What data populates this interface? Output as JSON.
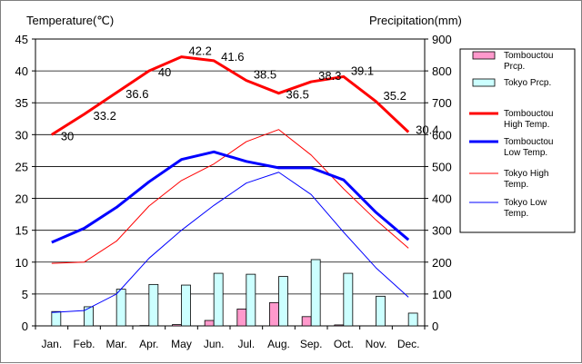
{
  "chart_data": {
    "type": "bar+line",
    "categories": [
      "Jan.",
      "Feb.",
      "Mar.",
      "Apr.",
      "May",
      "Jun.",
      "Jul.",
      "Aug.",
      "Sep.",
      "Oct.",
      "Nov.",
      "Dec."
    ],
    "y_left": {
      "label": "Temperature(℃)",
      "range": [
        0,
        45
      ],
      "ticks": [
        0,
        5,
        10,
        15,
        20,
        25,
        30,
        35,
        40,
        45
      ]
    },
    "y_right": {
      "label": "Precipitation(mm)",
      "range": [
        0,
        900
      ],
      "ticks": [
        0,
        100,
        200,
        300,
        400,
        500,
        600,
        700,
        800,
        900
      ]
    },
    "bars": [
      {
        "name": "Tombouctou Prcp.",
        "color": "#ff99cc",
        "axis": "right",
        "values": [
          0,
          0,
          0,
          1,
          4,
          17,
          53,
          73,
          29,
          3,
          0,
          0
        ]
      },
      {
        "name": "Tokyo Prcp.",
        "color": "#ccffff",
        "axis": "right",
        "values": [
          45,
          60,
          115,
          130,
          128,
          165,
          162,
          155,
          208,
          165,
          93,
          40
        ]
      }
    ],
    "lines": [
      {
        "name": "Tombouctou High Temp.",
        "color": "#ff0000",
        "width": 3,
        "axis": "left",
        "values": [
          30,
          33.2,
          36.6,
          40,
          42.2,
          41.6,
          38.5,
          36.5,
          38.3,
          39.1,
          35.2,
          30.4
        ],
        "labels": [
          "30",
          "33.2",
          "36.6",
          "40",
          "42.2",
          "41.6",
          "38.5",
          "36.5",
          "38.3",
          "39.1",
          "35.2",
          "30.4"
        ]
      },
      {
        "name": "Tombouctou Low Temp.",
        "color": "#0000ff",
        "width": 3,
        "axis": "left",
        "values": [
          13.1,
          15.3,
          18.6,
          22.6,
          26.1,
          27.3,
          25.8,
          24.8,
          24.8,
          22.9,
          17.8,
          13.5
        ]
      },
      {
        "name": "Tokyo High Temp.",
        "color": "#ff0000",
        "width": 1,
        "axis": "left",
        "values": [
          9.8,
          10.0,
          13.3,
          18.8,
          22.8,
          25.4,
          28.9,
          30.8,
          26.8,
          21.5,
          16.6,
          12.2
        ]
      },
      {
        "name": "Tokyo Low Temp.",
        "color": "#0000ff",
        "width": 1,
        "axis": "left",
        "values": [
          2.1,
          2.4,
          5.0,
          10.6,
          15.0,
          18.9,
          22.4,
          24.1,
          20.6,
          14.7,
          9.1,
          4.5
        ]
      }
    ],
    "legend_position": "right"
  },
  "legend": [
    {
      "line1": "Tombouctou",
      "line2": "Prcp."
    },
    {
      "line1": "Tokyo Prcp.",
      "line2": ""
    },
    {
      "line1": "Tombouctou",
      "line2": "High Temp."
    },
    {
      "line1": "Tombouctou",
      "line2": "Low  Temp."
    },
    {
      "line1": "Tokyo High",
      "line2": "Temp."
    },
    {
      "line1": "Tokyo Low",
      "line2": "Temp."
    }
  ]
}
